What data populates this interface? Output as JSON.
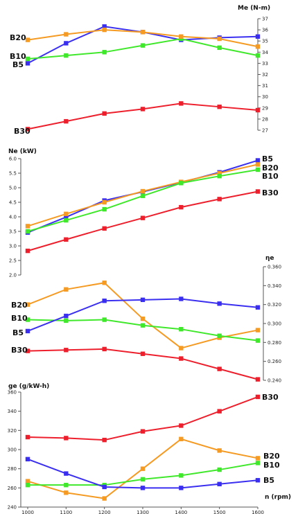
{
  "colors": {
    "B5": "#3a2ff0",
    "B10": "#3fe82a",
    "B20": "#f59a22",
    "B30": "#ee1f2c"
  },
  "chart_data": [
    {
      "type": "line",
      "id": "torque",
      "ylabel": "Me (N-m)",
      "ylim": [
        27,
        37
      ],
      "yticks": [
        "27",
        "28",
        "29",
        "30",
        "31",
        "32",
        "33",
        "34",
        "35",
        "36",
        "37"
      ],
      "x": [
        1000,
        1100,
        1200,
        1300,
        1400,
        1500,
        1600
      ],
      "series": [
        {
          "name": "B5",
          "values": [
            33.0,
            34.8,
            36.3,
            35.8,
            35.1,
            35.3,
            35.4
          ]
        },
        {
          "name": "B10",
          "values": [
            33.4,
            33.7,
            34.0,
            34.6,
            35.2,
            34.4,
            33.7
          ]
        },
        {
          "name": "B20",
          "values": [
            35.1,
            35.6,
            36.0,
            35.8,
            35.4,
            35.2,
            34.5
          ]
        },
        {
          "name": "B30",
          "values": [
            27.1,
            27.8,
            28.5,
            28.9,
            29.4,
            29.1,
            28.8
          ]
        }
      ]
    },
    {
      "type": "line",
      "id": "power",
      "ylabel": "Ne (kW)",
      "ylim": [
        2.0,
        6.0
      ],
      "yticks": [
        "2.0",
        "2.5",
        "3.0",
        "3.5",
        "4.0",
        "4.5",
        "5.0",
        "5.5",
        "6.0"
      ],
      "x": [
        1000,
        1100,
        1200,
        1300,
        1400,
        1500,
        1600
      ],
      "series": [
        {
          "name": "B5",
          "values": [
            3.46,
            3.99,
            4.56,
            4.86,
            5.18,
            5.53,
            5.94
          ]
        },
        {
          "name": "B20",
          "values": [
            3.68,
            4.1,
            4.5,
            4.88,
            5.2,
            5.5,
            5.8
          ]
        },
        {
          "name": "B10",
          "values": [
            3.5,
            3.88,
            4.26,
            4.72,
            5.16,
            5.4,
            5.62
          ]
        },
        {
          "name": "B30",
          "values": [
            2.83,
            3.22,
            3.6,
            3.96,
            4.33,
            4.61,
            4.87
          ]
        }
      ]
    },
    {
      "type": "line",
      "id": "efficiency",
      "ylabel": "ηe",
      "ylim": [
        0.24,
        0.36
      ],
      "yticks": [
        "0.240",
        "0.260",
        "0.280",
        "0.300",
        "0.320",
        "0.340",
        "0.360"
      ],
      "x": [
        1000,
        1100,
        1200,
        1300,
        1400,
        1500,
        1600
      ],
      "series": [
        {
          "name": "B20",
          "values": [
            0.32,
            0.336,
            0.343,
            0.305,
            0.274,
            0.285,
            0.293
          ]
        },
        {
          "name": "B10",
          "values": [
            0.304,
            0.303,
            0.304,
            0.298,
            0.294,
            0.287,
            0.282
          ]
        },
        {
          "name": "B5",
          "values": [
            0.292,
            0.308,
            0.324,
            0.325,
            0.326,
            0.321,
            0.317
          ]
        },
        {
          "name": "B30",
          "values": [
            0.271,
            0.272,
            0.273,
            0.268,
            0.263,
            0.252,
            0.241
          ]
        }
      ]
    },
    {
      "type": "line",
      "id": "sfc",
      "ylabel": "ge (g/kW-h)",
      "xlabel": "n (rpm)",
      "ylim": [
        240,
        360
      ],
      "yticks": [
        "240",
        "260",
        "280",
        "300",
        "320",
        "340",
        "360"
      ],
      "xticks": [
        "1000",
        "1100",
        "1200",
        "1300",
        "1400",
        "1500",
        "1600"
      ],
      "x": [
        1000,
        1100,
        1200,
        1300,
        1400,
        1500,
        1600
      ],
      "series": [
        {
          "name": "B30",
          "values": [
            313,
            312,
            310,
            319,
            325,
            340,
            355
          ]
        },
        {
          "name": "B20",
          "values": [
            267,
            255,
            249,
            280,
            311,
            299,
            291
          ]
        },
        {
          "name": "B10",
          "values": [
            263,
            263,
            263,
            269,
            273,
            279,
            286
          ]
        },
        {
          "name": "B5",
          "values": [
            290,
            275,
            261,
            260,
            260,
            264,
            268
          ]
        }
      ]
    }
  ]
}
